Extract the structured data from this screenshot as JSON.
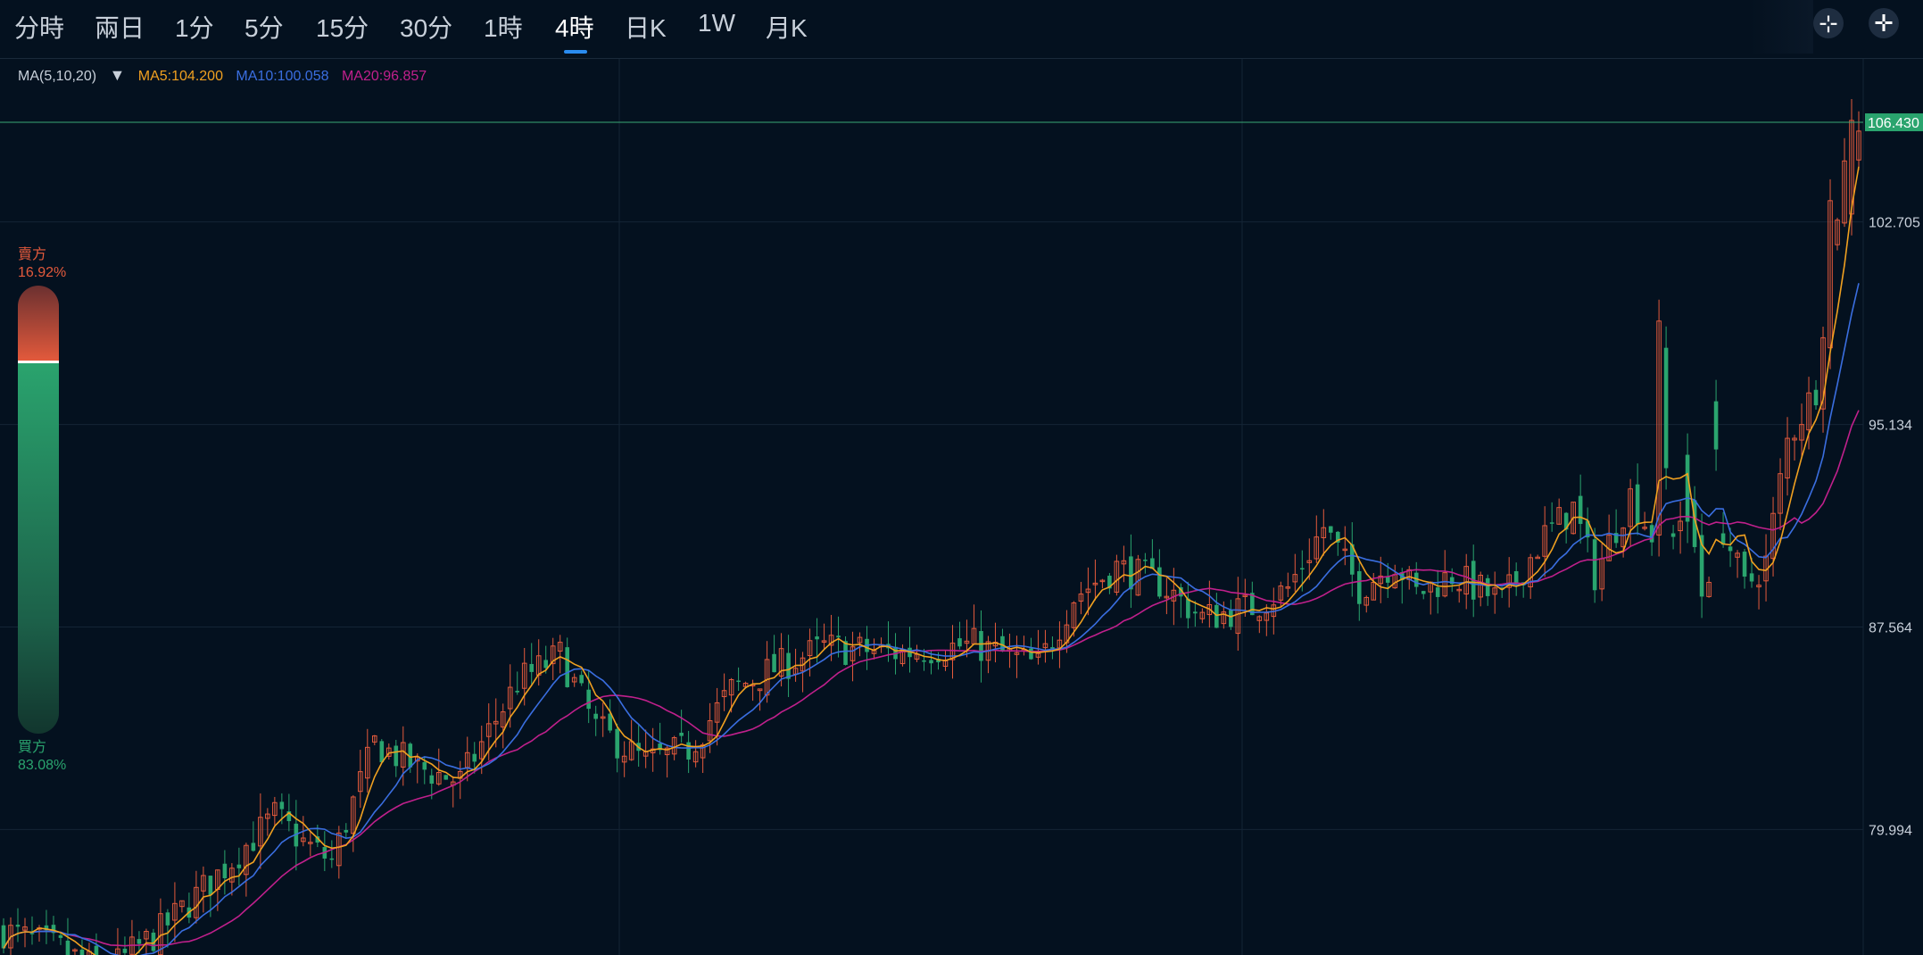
{
  "toolbar": {
    "tabs": [
      {
        "label": "分時"
      },
      {
        "label": "兩日"
      },
      {
        "label": "1分"
      },
      {
        "label": "5分"
      },
      {
        "label": "15分"
      },
      {
        "label": "30分"
      },
      {
        "label": "1時"
      },
      {
        "label": "4時"
      },
      {
        "label": "日K"
      },
      {
        "label": "1W"
      },
      {
        "label": "月K"
      }
    ],
    "active_tab": "4時",
    "buttons": [
      {
        "icon": "crosshair-icon"
      },
      {
        "icon": "fullscreen-icon"
      }
    ]
  },
  "ma_legend": {
    "selector": "MA(5,10,20)",
    "ma5": {
      "label": "MA5:104.200",
      "color": "#f0a020"
    },
    "ma10": {
      "label": "MA10:100.058",
      "color": "#3a6ee0"
    },
    "ma20": {
      "label": "MA20:96.857",
      "color": "#c0208c"
    }
  },
  "ratio": {
    "sell_label": "賣方",
    "sell_pct": "16.92%",
    "sell_value": 0.1692,
    "sell_color": "#e45a3c",
    "buy_label": "買方",
    "buy_pct": "83.08%",
    "buy_value": 0.8308,
    "buy_color": "#2aa46e"
  },
  "chart_data": {
    "type": "candlestick",
    "y_ticks": [
      "102.705",
      "95.134",
      "87.564",
      "79.994"
    ],
    "ylim": [
      75.3,
      108.8
    ],
    "last_price": "106.430",
    "last_price_value": 106.43,
    "up_color": "#e45a3c",
    "down_color": "#2aa46e",
    "grid": true,
    "x_range": [
      0,
      260
    ],
    "close_anchors": [
      [
        0,
        76.2
      ],
      [
        8,
        75.5
      ],
      [
        14,
        74.6
      ],
      [
        22,
        76.2
      ],
      [
        30,
        78.3
      ],
      [
        38,
        80.5
      ],
      [
        42,
        79.5
      ],
      [
        46,
        78.8
      ],
      [
        52,
        83.2
      ],
      [
        58,
        82.3
      ],
      [
        64,
        81.8
      ],
      [
        72,
        85.5
      ],
      [
        78,
        86.5
      ],
      [
        83,
        83.8
      ],
      [
        90,
        82.5
      ],
      [
        96,
        83.0
      ],
      [
        102,
        85.2
      ],
      [
        108,
        86.0
      ],
      [
        115,
        86.8
      ],
      [
        125,
        86.6
      ],
      [
        136,
        86.9
      ],
      [
        145,
        86.1
      ],
      [
        150,
        88.7
      ],
      [
        156,
        89.8
      ],
      [
        162,
        89.2
      ],
      [
        168,
        87.9
      ],
      [
        175,
        88.3
      ],
      [
        180,
        89.0
      ],
      [
        185,
        91.3
      ],
      [
        190,
        89.0
      ],
      [
        195,
        90.0
      ],
      [
        198,
        88.8
      ],
      [
        203,
        89.5
      ],
      [
        210,
        88.5
      ],
      [
        216,
        91.0
      ],
      [
        220,
        92.0
      ],
      [
        223,
        89.5
      ],
      [
        228,
        92.5
      ],
      [
        232,
        90.5
      ],
      [
        236,
        92.0
      ],
      [
        238,
        89.0
      ],
      [
        241,
        91.2
      ],
      [
        244,
        89.0
      ],
      [
        247,
        90.0
      ],
      [
        250,
        94.5
      ],
      [
        254,
        96.5
      ],
      [
        256,
        101.5
      ],
      [
        258,
        104.8
      ],
      [
        260,
        106.4
      ]
    ],
    "candle_bodies": [
      {
        "x": 232,
        "open": 91.0,
        "close": 99.0
      },
      {
        "x": 233,
        "open": 98.0,
        "close": 93.5
      },
      {
        "x": 236,
        "open": 94.0,
        "close": 91.5
      },
      {
        "x": 238,
        "open": 91.0,
        "close": 88.7
      },
      {
        "x": 240,
        "open": 96.0,
        "close": 94.2
      },
      {
        "x": 256,
        "open": 98.0,
        "close": 103.5
      },
      {
        "x": 259,
        "open": 103.0,
        "close": 106.5
      }
    ]
  }
}
